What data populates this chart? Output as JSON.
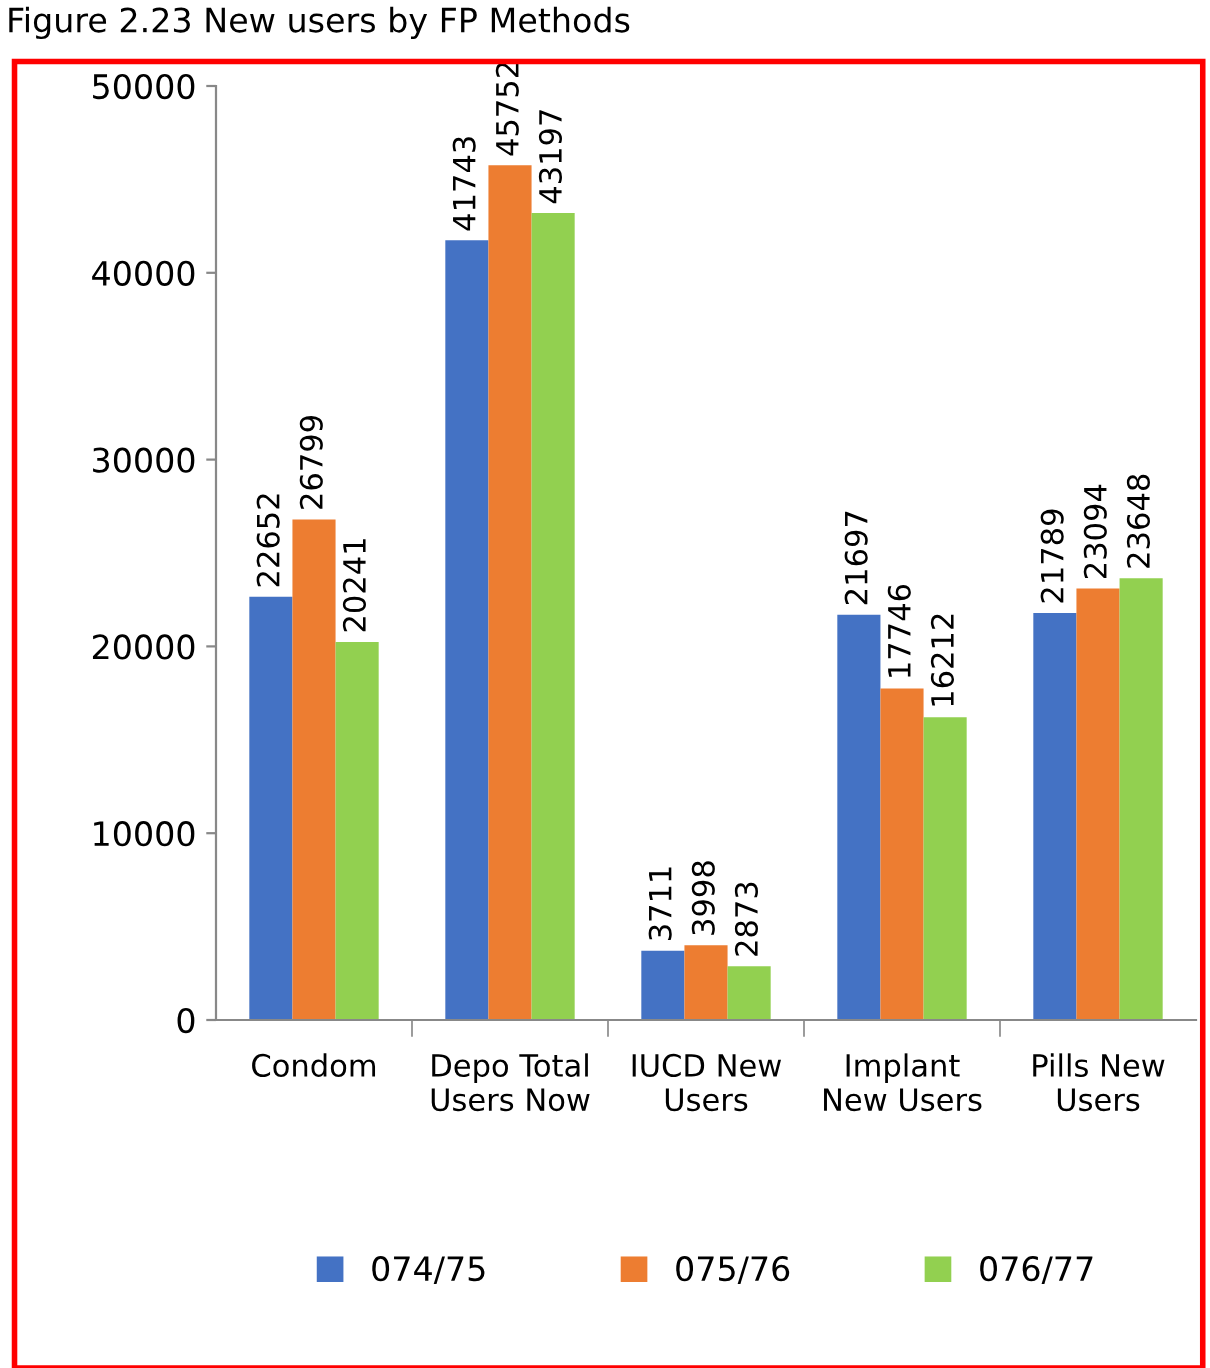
{
  "chart_data": {
    "type": "bar",
    "title": "Figure 2.23 New users by FP Methods",
    "categories": [
      "Condom",
      "Depo Total\nUsers Now",
      "IUCD New\nUsers",
      "Implant\nNew Users",
      "Pills New\nUsers"
    ],
    "series": [
      {
        "name": "074/75",
        "color": "#4472c4",
        "values": [
          22652,
          41743,
          3711,
          21697,
          21789
        ]
      },
      {
        "name": "075/76",
        "color": "#ed7d31",
        "values": [
          26799,
          45752,
          3998,
          17746,
          23094
        ]
      },
      {
        "name": "076/77",
        "color": "#92d050",
        "values": [
          20241,
          43197,
          2873,
          16212,
          23648
        ]
      }
    ],
    "ylim": [
      0,
      50000
    ],
    "yticks": [
      0,
      10000,
      20000,
      30000,
      40000,
      50000
    ],
    "grid": false,
    "legend": "bottom",
    "data_labels": true
  }
}
